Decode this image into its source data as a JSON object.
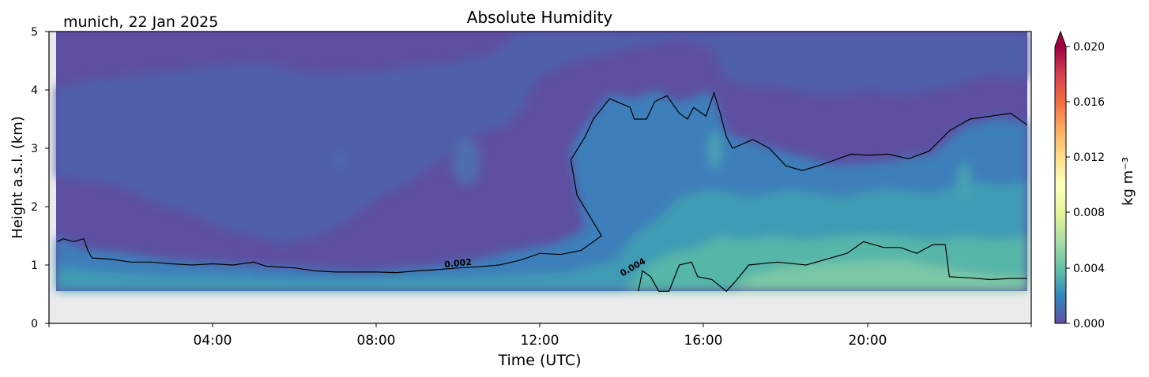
{
  "chart_data": {
    "type": "heatmap",
    "title": "Absolute Humidity",
    "subtitle": "munich, 22 Jan 2025",
    "xlabel": "Time (UTC)",
    "ylabel": "Height a.s.l. (km)",
    "xlim": [
      0,
      24
    ],
    "ylim": [
      0,
      5
    ],
    "x_ticks": [
      "04:00",
      "08:00",
      "12:00",
      "16:00",
      "20:00"
    ],
    "y_ticks": [
      "0",
      "1",
      "2",
      "3",
      "4",
      "5"
    ],
    "grid": false,
    "data_min_height_km": 0.55,
    "colorbar": {
      "label": "kg m⁻³",
      "range": [
        0,
        0.02
      ],
      "ticks": [
        "0.000",
        "0.004",
        "0.008",
        "0.012",
        "0.016",
        "0.020"
      ],
      "extend": "max",
      "colormap": "Spectral_r"
    },
    "contours": [
      {
        "level": "0.002",
        "label": "0.002",
        "points": [
          [
            0.2,
            1.4
          ],
          [
            0.35,
            1.45
          ],
          [
            0.6,
            1.4
          ],
          [
            0.85,
            1.45
          ],
          [
            0.95,
            1.25
          ],
          [
            1.05,
            1.12
          ],
          [
            1.5,
            1.1
          ],
          [
            2.0,
            1.05
          ],
          [
            2.5,
            1.05
          ],
          [
            3.0,
            1.02
          ],
          [
            3.5,
            1.0
          ],
          [
            4.0,
            1.02
          ],
          [
            4.5,
            1.0
          ],
          [
            5.0,
            1.05
          ],
          [
            5.3,
            0.98
          ],
          [
            6.0,
            0.95
          ],
          [
            6.5,
            0.9
          ],
          [
            7.0,
            0.88
          ],
          [
            7.5,
            0.88
          ],
          [
            8.0,
            0.88
          ],
          [
            8.5,
            0.87
          ],
          [
            9.0,
            0.9
          ],
          [
            9.5,
            0.92
          ],
          [
            10.0,
            0.95
          ],
          [
            10.5,
            0.97
          ],
          [
            11.0,
            1.0
          ],
          [
            11.5,
            1.08
          ],
          [
            12.0,
            1.2
          ],
          [
            12.5,
            1.18
          ],
          [
            13.0,
            1.25
          ],
          [
            13.5,
            1.5
          ],
          [
            13.2,
            1.85
          ],
          [
            12.9,
            2.2
          ],
          [
            12.75,
            2.8
          ],
          [
            13.1,
            3.2
          ],
          [
            13.3,
            3.5
          ],
          [
            13.7,
            3.85
          ],
          [
            14.2,
            3.7
          ],
          [
            14.3,
            3.5
          ],
          [
            14.6,
            3.5
          ],
          [
            14.8,
            3.8
          ],
          [
            15.1,
            3.9
          ],
          [
            15.4,
            3.6
          ],
          [
            15.6,
            3.5
          ],
          [
            15.75,
            3.7
          ],
          [
            16.05,
            3.55
          ],
          [
            16.25,
            3.95
          ],
          [
            16.4,
            3.6
          ],
          [
            16.55,
            3.2
          ],
          [
            16.7,
            3.0
          ],
          [
            17.2,
            3.15
          ],
          [
            17.6,
            3.0
          ],
          [
            18.0,
            2.7
          ],
          [
            18.4,
            2.62
          ],
          [
            18.8,
            2.7
          ],
          [
            19.2,
            2.8
          ],
          [
            19.6,
            2.9
          ],
          [
            20.0,
            2.88
          ],
          [
            20.5,
            2.9
          ],
          [
            21.0,
            2.82
          ],
          [
            21.5,
            2.95
          ],
          [
            22.0,
            3.3
          ],
          [
            22.5,
            3.5
          ],
          [
            23.0,
            3.55
          ],
          [
            23.5,
            3.6
          ],
          [
            23.9,
            3.4
          ]
        ]
      },
      {
        "level": "0.004",
        "label": "0.004",
        "points": [
          [
            14.4,
            0.55
          ],
          [
            14.5,
            0.9
          ],
          [
            14.7,
            0.8
          ],
          [
            14.9,
            0.55
          ],
          [
            15.15,
            0.55
          ],
          [
            15.4,
            1.0
          ],
          [
            15.7,
            1.05
          ],
          [
            15.85,
            0.8
          ],
          [
            16.2,
            0.75
          ],
          [
            16.55,
            0.55
          ],
          [
            16.75,
            0.7
          ],
          [
            17.1,
            1.0
          ],
          [
            17.8,
            1.05
          ],
          [
            18.5,
            1.0
          ],
          [
            19.0,
            1.1
          ],
          [
            19.5,
            1.2
          ],
          [
            19.9,
            1.4
          ],
          [
            20.4,
            1.3
          ],
          [
            20.8,
            1.3
          ],
          [
            21.2,
            1.2
          ],
          [
            21.6,
            1.35
          ],
          [
            21.9,
            1.35
          ],
          [
            22.0,
            0.8
          ],
          [
            22.5,
            0.78
          ],
          [
            23.0,
            0.75
          ],
          [
            23.5,
            0.77
          ],
          [
            23.9,
            0.77
          ]
        ]
      }
    ]
  }
}
